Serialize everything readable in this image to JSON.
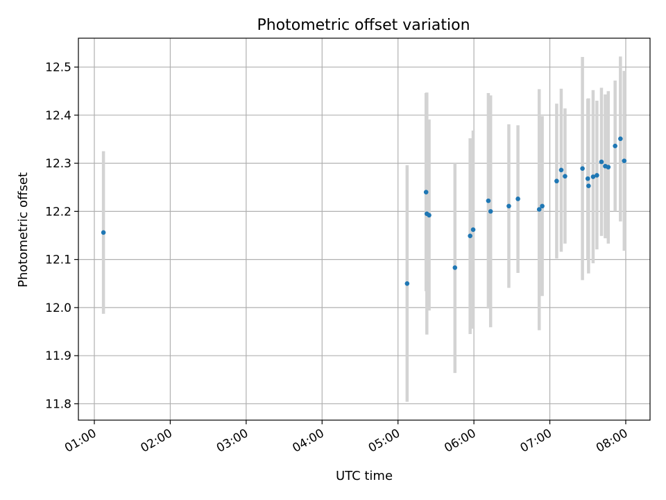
{
  "chart_data": {
    "type": "scatter",
    "title": "Photometric offset variation",
    "xlabel": "UTC time",
    "ylabel": "Photometric offset",
    "grid": true,
    "x_ticks": [
      "01:00",
      "02:00",
      "03:00",
      "04:00",
      "05:00",
      "06:00",
      "07:00",
      "08:00"
    ],
    "x_tick_hours": [
      1,
      2,
      3,
      4,
      5,
      6,
      7,
      8
    ],
    "y_ticks": [
      "11.8",
      "11.9",
      "12.0",
      "12.1",
      "12.2",
      "12.3",
      "12.4",
      "12.5"
    ],
    "y_tick_values": [
      11.8,
      11.9,
      12.0,
      12.1,
      12.2,
      12.3,
      12.4,
      12.5
    ],
    "xlim_hours": [
      0.79,
      8.32
    ],
    "ylim": [
      11.766,
      12.56
    ],
    "marker_color": "#1f77b4",
    "errorbar_color": "#d3d3d3",
    "points": [
      {
        "t": 1.12,
        "y": 12.156,
        "lo": 11.987,
        "hi": 12.325
      },
      {
        "t": 5.12,
        "y": 12.05,
        "lo": 11.804,
        "hi": 12.296
      },
      {
        "t": 5.37,
        "y": 12.24,
        "lo": 12.034,
        "hi": 12.446
      },
      {
        "t": 5.38,
        "y": 12.195,
        "lo": 11.944,
        "hi": 12.447
      },
      {
        "t": 5.41,
        "y": 12.192,
        "lo": 11.994,
        "hi": 12.391
      },
      {
        "t": 5.75,
        "y": 12.083,
        "lo": 11.864,
        "hi": 12.3
      },
      {
        "t": 5.95,
        "y": 12.149,
        "lo": 11.945,
        "hi": 12.352
      },
      {
        "t": 5.99,
        "y": 12.162,
        "lo": 11.956,
        "hi": 12.368
      },
      {
        "t": 6.19,
        "y": 12.222,
        "lo": 11.998,
        "hi": 12.446
      },
      {
        "t": 6.22,
        "y": 12.2,
        "lo": 11.959,
        "hi": 12.441
      },
      {
        "t": 6.46,
        "y": 12.211,
        "lo": 12.041,
        "hi": 12.381
      },
      {
        "t": 6.58,
        "y": 12.226,
        "lo": 12.072,
        "hi": 12.379
      },
      {
        "t": 6.86,
        "y": 12.204,
        "lo": 11.953,
        "hi": 12.454
      },
      {
        "t": 6.9,
        "y": 12.211,
        "lo": 12.024,
        "hi": 12.398
      },
      {
        "t": 7.09,
        "y": 12.263,
        "lo": 12.102,
        "hi": 12.424
      },
      {
        "t": 7.15,
        "y": 12.286,
        "lo": 12.116,
        "hi": 12.455
      },
      {
        "t": 7.2,
        "y": 12.273,
        "lo": 12.133,
        "hi": 12.414
      },
      {
        "t": 7.43,
        "y": 12.289,
        "lo": 12.057,
        "hi": 12.521
      },
      {
        "t": 7.5,
        "y": 12.268,
        "lo": 12.101,
        "hi": 12.434
      },
      {
        "t": 7.51,
        "y": 12.253,
        "lo": 12.071,
        "hi": 12.435
      },
      {
        "t": 7.57,
        "y": 12.272,
        "lo": 12.092,
        "hi": 12.452
      },
      {
        "t": 7.62,
        "y": 12.275,
        "lo": 12.121,
        "hi": 12.43
      },
      {
        "t": 7.68,
        "y": 12.303,
        "lo": 12.149,
        "hi": 12.457
      },
      {
        "t": 7.73,
        "y": 12.294,
        "lo": 12.144,
        "hi": 12.443
      },
      {
        "t": 7.77,
        "y": 12.292,
        "lo": 12.133,
        "hi": 12.45
      },
      {
        "t": 7.86,
        "y": 12.336,
        "lo": 12.2,
        "hi": 12.472
      },
      {
        "t": 7.93,
        "y": 12.351,
        "lo": 12.179,
        "hi": 12.522
      },
      {
        "t": 7.98,
        "y": 12.305,
        "lo": 12.118,
        "hi": 12.492
      }
    ]
  }
}
